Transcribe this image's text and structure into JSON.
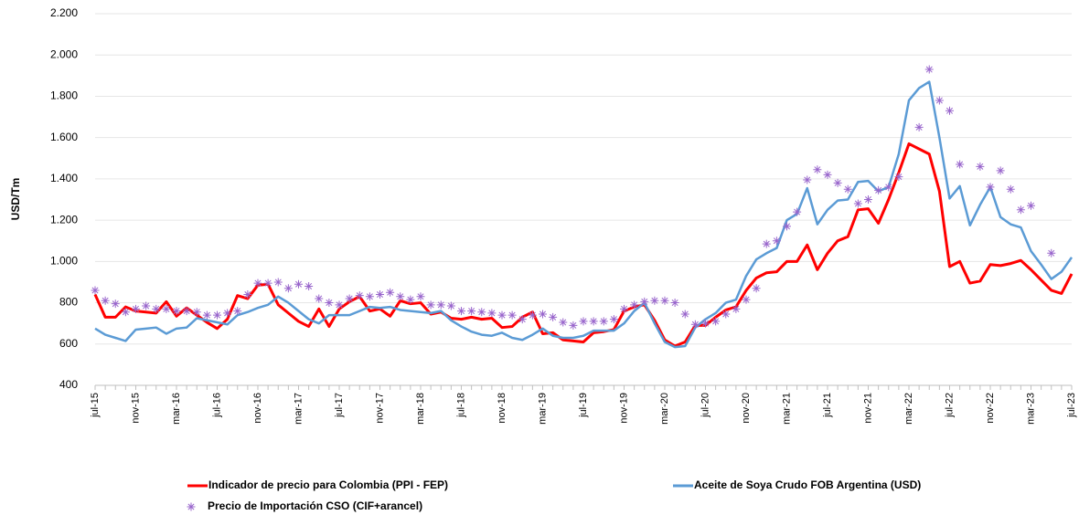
{
  "chart_data": {
    "type": "line",
    "ylabel": "USD/Tm",
    "categories": [
      "jul-15",
      null,
      null,
      null,
      "nov-15",
      null,
      null,
      null,
      "mar-16",
      null,
      null,
      null,
      "jul-16",
      null,
      null,
      null,
      "nov-16",
      null,
      null,
      null,
      "mar-17",
      null,
      null,
      null,
      "jul-17",
      null,
      null,
      null,
      "nov-17",
      null,
      null,
      null,
      "mar-18",
      null,
      null,
      null,
      "jul-18",
      null,
      null,
      null,
      "nov-18",
      null,
      null,
      null,
      "mar-19",
      null,
      null,
      null,
      "jul-19",
      null,
      null,
      null,
      "nov-19",
      null,
      null,
      null,
      "mar-20",
      null,
      null,
      null,
      "jul-20",
      null,
      null,
      null,
      "nov-20",
      null,
      null,
      null,
      "mar-21",
      null,
      null,
      null,
      "jul-21",
      null,
      null,
      null,
      "nov-21",
      null,
      null,
      null,
      "mar-22",
      null,
      null,
      null,
      "jul-22",
      null,
      null,
      null,
      "nov-22",
      null,
      null,
      null,
      "mar-23",
      null,
      null,
      null,
      "jul-23"
    ],
    "series": [
      {
        "name": "Indicador de precio para Colombia (PPI - FEP)",
        "color": "#ff0000",
        "mode": "line",
        "values": [
          840,
          730,
          730,
          780,
          760,
          755,
          750,
          805,
          735,
          775,
          740,
          705,
          675,
          720,
          835,
          820,
          885,
          890,
          790,
          750,
          710,
          685,
          770,
          685,
          770,
          805,
          830,
          760,
          770,
          735,
          810,
          795,
          800,
          745,
          755,
          725,
          720,
          730,
          720,
          725,
          680,
          685,
          730,
          755,
          650,
          655,
          620,
          615,
          610,
          655,
          660,
          670,
          760,
          780,
          790,
          715,
          620,
          590,
          610,
          690,
          690,
          730,
          765,
          780,
          860,
          920,
          945,
          950,
          1000,
          1000,
          1080,
          960,
          1040,
          1100,
          1120,
          1250,
          1255,
          1185,
          1300,
          1430,
          1570,
          1545,
          1520,
          1340,
          975,
          1000,
          895,
          905,
          985,
          980,
          990,
          1005,
          960,
          910,
          860,
          845,
          940
        ]
      },
      {
        "name": "Aceite de Soya Crudo FOB Argentina (USD)",
        "color": "#5b9bd5",
        "mode": "line",
        "values": [
          675,
          645,
          630,
          615,
          670,
          675,
          680,
          650,
          675,
          680,
          725,
          715,
          705,
          695,
          740,
          755,
          775,
          790,
          830,
          800,
          760,
          720,
          700,
          740,
          740,
          740,
          760,
          780,
          775,
          780,
          765,
          760,
          755,
          750,
          760,
          715,
          685,
          660,
          645,
          640,
          655,
          630,
          620,
          645,
          675,
          640,
          630,
          630,
          640,
          665,
          665,
          665,
          700,
          760,
          800,
          700,
          610,
          585,
          590,
          680,
          720,
          750,
          800,
          815,
          930,
          1010,
          1040,
          1065,
          1200,
          1230,
          1355,
          1180,
          1250,
          1295,
          1300,
          1385,
          1390,
          1340,
          1360,
          1520,
          1780,
          1840,
          1870,
          1600,
          1305,
          1365,
          1175,
          1275,
          1360,
          1215,
          1180,
          1165,
          1050,
          985,
          915,
          950,
          1020
        ]
      },
      {
        "name": "Precio de Importación CSO (CIF+arancel)",
        "color": "#9966cc",
        "mode": "markers",
        "values": [
          860,
          810,
          795,
          755,
          770,
          785,
          770,
          770,
          760,
          760,
          755,
          740,
          740,
          750,
          760,
          840,
          895,
          895,
          900,
          870,
          890,
          880,
          820,
          800,
          790,
          820,
          835,
          830,
          840,
          850,
          830,
          815,
          830,
          790,
          790,
          785,
          760,
          760,
          755,
          750,
          740,
          740,
          720,
          740,
          745,
          730,
          705,
          690,
          710,
          710,
          710,
          720,
          770,
          790,
          805,
          810,
          810,
          800,
          745,
          695,
          700,
          710,
          745,
          770,
          815,
          870,
          1085,
          1100,
          1170,
          1240,
          1395,
          1445,
          1420,
          1380,
          1350,
          1280,
          1300,
          1345,
          1360,
          1410,
          null,
          1650,
          1930,
          1780,
          1730,
          1470,
          null,
          1460,
          1360,
          1440,
          1350,
          1250,
          1270,
          null,
          1040,
          null,
          null
        ]
      }
    ],
    "ylim": [
      400,
      2200
    ],
    "yticks": [
      400,
      600,
      800,
      {
        "value": 1000,
        "label": "1.000"
      },
      {
        "value": 1200,
        "label": "1.200"
      },
      {
        "value": 1400,
        "label": "1.400"
      },
      {
        "value": 1600,
        "label": "1.600"
      },
      {
        "value": 1800,
        "label": "1.800"
      },
      {
        "value": 2000,
        "label": "2.000"
      },
      {
        "value": 2200,
        "label": "2.200"
      }
    ],
    "grid": true,
    "legend": "bottom"
  }
}
